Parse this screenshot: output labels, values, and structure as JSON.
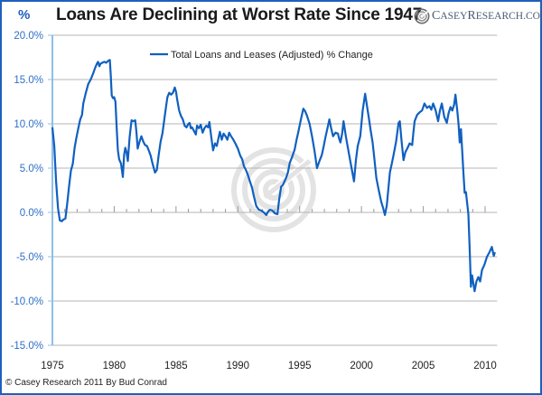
{
  "header": {
    "unit_label": "%",
    "title": "Loans Are Declining at Worst Rate Since 1947",
    "brand_first_big": "C",
    "brand_first_rest": "ASEY ",
    "brand_second_big": "R",
    "brand_second_rest": "ESEARCH.COM",
    "brand_icon": "casey-swirl-logo-icon"
  },
  "footer": {
    "copyright": "© Casey Research 2011 By Bud Conrad"
  },
  "colors": {
    "line": "#1060c0",
    "frame": "#1f5fbf",
    "axis": "#8fbfe6",
    "grid": "#b4b4b4",
    "tick_label": "#2f6fc8"
  },
  "chart_data": {
    "type": "line",
    "title": "Loans Are Declining at Worst Rate Since 1947",
    "xlabel": "",
    "ylabel": "%",
    "xlim": [
      1975,
      2010.9
    ],
    "ylim": [
      -15,
      20
    ],
    "y_ticks": [
      20,
      15,
      10,
      5,
      0,
      -5,
      -10,
      -15
    ],
    "y_tick_labels": [
      "20.0%",
      "15.0%",
      "10.0%",
      "5.0%",
      "0.0%",
      "-5.0%",
      "-10.0%",
      "-15.0%"
    ],
    "x_ticks": [
      1975,
      1980,
      1985,
      1990,
      1995,
      2000,
      2005,
      2010
    ],
    "x_tick_labels": [
      "1975",
      "1980",
      "1985",
      "1990",
      "1995",
      "2000",
      "2005",
      "2010"
    ],
    "grid": true,
    "legend_position": "top-center",
    "watermark": "casey-swirl-watermark",
    "series": [
      {
        "name": "Total Loans and Leases (Adjusted) % Change",
        "points": [
          [
            1975.0,
            9.6
          ],
          [
            1975.15,
            7.5
          ],
          [
            1975.3,
            3.5
          ],
          [
            1975.45,
            0.5
          ],
          [
            1975.6,
            -0.9
          ],
          [
            1975.75,
            -1.0
          ],
          [
            1975.9,
            -0.8
          ],
          [
            1976.05,
            -0.7
          ],
          [
            1976.2,
            1.0
          ],
          [
            1976.35,
            3.0
          ],
          [
            1976.5,
            4.7
          ],
          [
            1976.65,
            5.5
          ],
          [
            1976.8,
            7.3
          ],
          [
            1976.95,
            8.5
          ],
          [
            1977.1,
            9.5
          ],
          [
            1977.25,
            10.5
          ],
          [
            1977.4,
            11.0
          ],
          [
            1977.5,
            12.3
          ],
          [
            1977.7,
            13.5
          ],
          [
            1977.9,
            14.5
          ],
          [
            1978.1,
            15.0
          ],
          [
            1978.3,
            15.7
          ],
          [
            1978.45,
            16.3
          ],
          [
            1978.6,
            16.8
          ],
          [
            1978.7,
            17.0
          ],
          [
            1978.8,
            16.5
          ],
          [
            1978.9,
            16.8
          ],
          [
            1979.05,
            16.9
          ],
          [
            1979.2,
            17.0
          ],
          [
            1979.35,
            16.9
          ],
          [
            1979.5,
            17.1
          ],
          [
            1979.65,
            17.2
          ],
          [
            1979.72,
            15.5
          ],
          [
            1979.8,
            13.2
          ],
          [
            1979.9,
            12.9
          ],
          [
            1980.0,
            13.0
          ],
          [
            1980.1,
            12.5
          ],
          [
            1980.2,
            9.5
          ],
          [
            1980.3,
            7.0
          ],
          [
            1980.4,
            6.0
          ],
          [
            1980.55,
            5.5
          ],
          [
            1980.7,
            4.0
          ],
          [
            1980.8,
            6.5
          ],
          [
            1980.9,
            7.3
          ],
          [
            1981.0,
            6.8
          ],
          [
            1981.1,
            5.8
          ],
          [
            1981.25,
            8.5
          ],
          [
            1981.4,
            10.4
          ],
          [
            1981.55,
            10.3
          ],
          [
            1981.7,
            10.4
          ],
          [
            1981.8,
            9.0
          ],
          [
            1981.9,
            7.2
          ],
          [
            1982.05,
            8.0
          ],
          [
            1982.2,
            8.6
          ],
          [
            1982.35,
            8.0
          ],
          [
            1982.5,
            7.6
          ],
          [
            1982.65,
            7.5
          ],
          [
            1982.8,
            7.0
          ],
          [
            1982.95,
            6.4
          ],
          [
            1983.1,
            5.5
          ],
          [
            1983.3,
            4.5
          ],
          [
            1983.45,
            4.8
          ],
          [
            1983.6,
            6.5
          ],
          [
            1983.75,
            8.0
          ],
          [
            1983.9,
            8.9
          ],
          [
            1984.05,
            10.5
          ],
          [
            1984.2,
            12.0
          ],
          [
            1984.3,
            13.0
          ],
          [
            1984.45,
            13.5
          ],
          [
            1984.6,
            13.3
          ],
          [
            1984.75,
            13.5
          ],
          [
            1984.9,
            14.1
          ],
          [
            1985.0,
            13.6
          ],
          [
            1985.1,
            12.7
          ],
          [
            1985.25,
            11.5
          ],
          [
            1985.4,
            10.9
          ],
          [
            1985.55,
            10.5
          ],
          [
            1985.7,
            9.8
          ],
          [
            1985.85,
            9.6
          ],
          [
            1986.0,
            10.0
          ],
          [
            1986.1,
            10.1
          ],
          [
            1986.2,
            9.5
          ],
          [
            1986.3,
            9.6
          ],
          [
            1986.45,
            9.2
          ],
          [
            1986.6,
            8.8
          ],
          [
            1986.7,
            9.8
          ],
          [
            1986.85,
            9.5
          ],
          [
            1987.0,
            9.9
          ],
          [
            1987.15,
            9.0
          ],
          [
            1987.3,
            9.5
          ],
          [
            1987.45,
            9.8
          ],
          [
            1987.6,
            9.6
          ],
          [
            1987.7,
            10.2
          ],
          [
            1987.85,
            8.5
          ],
          [
            1988.0,
            7.0
          ],
          [
            1988.15,
            7.8
          ],
          [
            1988.3,
            7.5
          ],
          [
            1988.45,
            8.5
          ],
          [
            1988.55,
            9.1
          ],
          [
            1988.7,
            8.2
          ],
          [
            1988.85,
            8.9
          ],
          [
            1989.0,
            8.6
          ],
          [
            1989.15,
            8.2
          ],
          [
            1989.3,
            9.0
          ],
          [
            1989.45,
            8.6
          ],
          [
            1989.6,
            8.3
          ],
          [
            1989.8,
            7.8
          ],
          [
            1990.0,
            7.2
          ],
          [
            1990.2,
            6.4
          ],
          [
            1990.35,
            6.0
          ],
          [
            1990.5,
            5.2
          ],
          [
            1990.65,
            4.8
          ],
          [
            1990.8,
            4.3
          ],
          [
            1991.0,
            3.4
          ],
          [
            1991.15,
            2.8
          ],
          [
            1991.3,
            1.8
          ],
          [
            1991.5,
            0.7
          ],
          [
            1991.7,
            0.3
          ],
          [
            1991.9,
            0.2
          ],
          [
            1992.1,
            0.0
          ],
          [
            1992.3,
            -0.3
          ],
          [
            1992.45,
            0.1
          ],
          [
            1992.6,
            0.3
          ],
          [
            1992.8,
            0.2
          ],
          [
            1993.0,
            -0.1
          ],
          [
            1993.2,
            -0.2
          ],
          [
            1993.35,
            1.5
          ],
          [
            1993.5,
            2.9
          ],
          [
            1993.65,
            3.1
          ],
          [
            1993.9,
            3.9
          ],
          [
            1994.05,
            4.5
          ],
          [
            1994.2,
            5.6
          ],
          [
            1994.4,
            6.3
          ],
          [
            1994.6,
            7.1
          ],
          [
            1994.75,
            8.2
          ],
          [
            1994.9,
            9.1
          ],
          [
            1995.1,
            10.5
          ],
          [
            1995.3,
            11.7
          ],
          [
            1995.45,
            11.4
          ],
          [
            1995.6,
            10.9
          ],
          [
            1995.8,
            10.0
          ],
          [
            1996.0,
            8.6
          ],
          [
            1996.2,
            7.0
          ],
          [
            1996.4,
            5.0
          ],
          [
            1996.6,
            5.8
          ],
          [
            1996.8,
            6.5
          ],
          [
            1996.95,
            7.5
          ],
          [
            1997.1,
            8.6
          ],
          [
            1997.25,
            9.5
          ],
          [
            1997.4,
            10.5
          ],
          [
            1997.55,
            9.5
          ],
          [
            1997.7,
            8.6
          ],
          [
            1997.9,
            9.0
          ],
          [
            1998.1,
            8.9
          ],
          [
            1998.2,
            8.3
          ],
          [
            1998.3,
            7.9
          ],
          [
            1998.45,
            9.0
          ],
          [
            1998.55,
            10.3
          ],
          [
            1998.75,
            8.5
          ],
          [
            1999.0,
            6.5
          ],
          [
            1999.2,
            5.0
          ],
          [
            1999.4,
            3.5
          ],
          [
            1999.55,
            5.9
          ],
          [
            1999.7,
            7.5
          ],
          [
            1999.9,
            8.6
          ],
          [
            2000.1,
            11.5
          ],
          [
            2000.3,
            13.4
          ],
          [
            2000.45,
            12.0
          ],
          [
            2000.6,
            10.6
          ],
          [
            2000.75,
            9.2
          ],
          [
            2000.9,
            7.9
          ],
          [
            2001.05,
            6.0
          ],
          [
            2001.2,
            3.9
          ],
          [
            2001.4,
            2.5
          ],
          [
            2001.6,
            1.2
          ],
          [
            2001.75,
            0.5
          ],
          [
            2001.9,
            -0.3
          ],
          [
            2002.05,
            0.8
          ],
          [
            2002.3,
            4.5
          ],
          [
            2002.45,
            5.5
          ],
          [
            2002.6,
            6.5
          ],
          [
            2002.8,
            8.0
          ],
          [
            2003.0,
            10.1
          ],
          [
            2003.1,
            10.3
          ],
          [
            2003.25,
            8.0
          ],
          [
            2003.4,
            5.9
          ],
          [
            2003.55,
            6.8
          ],
          [
            2003.7,
            7.2
          ],
          [
            2003.9,
            7.8
          ],
          [
            2004.1,
            7.6
          ],
          [
            2004.2,
            9.0
          ],
          [
            2004.3,
            10.3
          ],
          [
            2004.5,
            11.0
          ],
          [
            2004.7,
            11.3
          ],
          [
            2004.9,
            11.5
          ],
          [
            2005.1,
            12.3
          ],
          [
            2005.3,
            11.8
          ],
          [
            2005.5,
            12.0
          ],
          [
            2005.65,
            11.6
          ],
          [
            2005.8,
            12.3
          ],
          [
            2006.0,
            11.5
          ],
          [
            2006.2,
            10.3
          ],
          [
            2006.35,
            11.5
          ],
          [
            2006.5,
            12.3
          ],
          [
            2006.7,
            10.8
          ],
          [
            2006.9,
            10.1
          ],
          [
            2007.05,
            11.2
          ],
          [
            2007.2,
            11.9
          ],
          [
            2007.35,
            11.5
          ],
          [
            2007.5,
            12.2
          ],
          [
            2007.6,
            13.3
          ],
          [
            2007.75,
            11.5
          ],
          [
            2007.85,
            10.0
          ],
          [
            2007.95,
            7.9
          ],
          [
            2008.05,
            9.4
          ],
          [
            2008.15,
            6.9
          ],
          [
            2008.25,
            4.5
          ],
          [
            2008.35,
            2.2
          ],
          [
            2008.45,
            2.3
          ],
          [
            2008.55,
            1.0
          ],
          [
            2008.65,
            -0.2
          ],
          [
            2008.75,
            -4.0
          ],
          [
            2008.85,
            -8.4
          ],
          [
            2008.95,
            -7.1
          ],
          [
            2009.05,
            -8.0
          ],
          [
            2009.15,
            -8.9
          ],
          [
            2009.3,
            -7.8
          ],
          [
            2009.45,
            -7.3
          ],
          [
            2009.6,
            -7.8
          ],
          [
            2009.75,
            -6.5
          ],
          [
            2009.95,
            -5.9
          ],
          [
            2010.15,
            -5.0
          ],
          [
            2010.35,
            -4.5
          ],
          [
            2010.55,
            -3.9
          ],
          [
            2010.7,
            -4.9
          ],
          [
            2010.8,
            -4.5
          ]
        ]
      }
    ]
  }
}
